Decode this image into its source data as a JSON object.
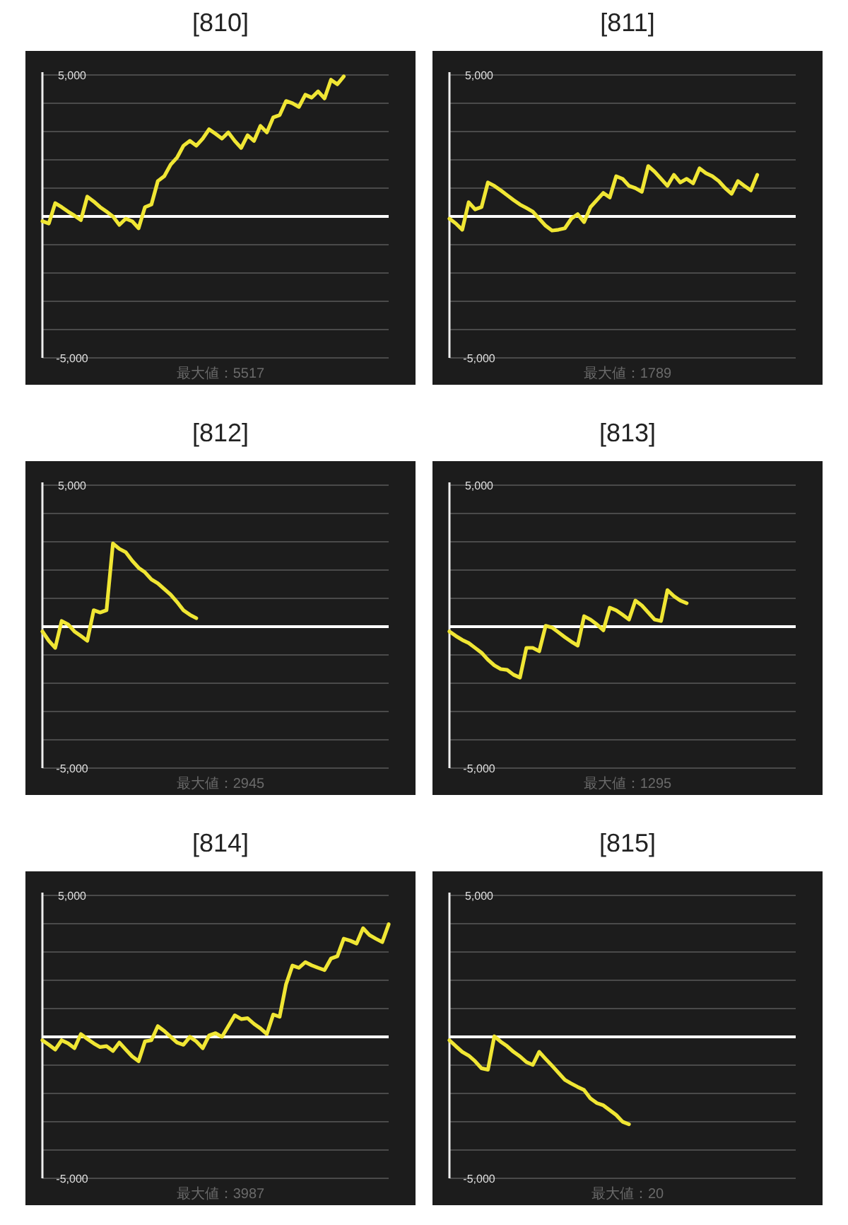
{
  "chart_data": [
    {
      "type": "line",
      "title": "[810]",
      "categories": [
        null,
        null,
        null,
        null,
        null,
        null,
        null,
        null,
        null,
        null,
        null,
        null,
        null,
        null,
        null,
        null,
        null,
        null,
        null,
        null,
        null,
        null,
        null,
        null,
        null,
        null,
        null,
        null,
        null,
        null,
        null,
        null,
        null,
        null,
        null,
        null,
        null,
        null,
        null,
        null,
        null,
        null,
        null,
        null,
        null,
        null,
        null,
        null,
        null,
        null,
        null,
        null,
        null,
        null,
        null
      ],
      "series": [
        {
          "color": "#f0e634",
          "values": [
            -170,
            -250,
            470,
            330,
            170,
            30,
            -130,
            700,
            530,
            330,
            170,
            0,
            -300,
            -80,
            -170,
            -420,
            330,
            420,
            1250,
            1420,
            1830,
            2080,
            2500,
            2670,
            2500,
            2750,
            3080,
            2920,
            2750,
            2970,
            2670,
            2420,
            2870,
            2670,
            3200,
            2970,
            3500,
            3580,
            4080,
            4000,
            3870,
            4300,
            4200,
            4420,
            4170,
            4830,
            4670,
            4950,
            null,
            null,
            null,
            null,
            null,
            null,
            null
          ]
        }
      ],
      "ylim": [
        -5000,
        5000
      ],
      "yticks": [
        {
          "value": -5000,
          "label": "-5,000"
        },
        {
          "value": -4000,
          "label": null
        },
        {
          "value": -3000,
          "label": null
        },
        {
          "value": -2000,
          "label": null
        },
        {
          "value": -1000,
          "label": null
        },
        {
          "value": 0,
          "label": null
        },
        {
          "value": 1000,
          "label": null
        },
        {
          "value": 2000,
          "label": null
        },
        {
          "value": 3000,
          "label": null
        },
        {
          "value": 4000,
          "label": null
        },
        {
          "value": 5000,
          "label": "5,000"
        }
      ],
      "grid": "y",
      "tick_labels": "y",
      "ref_lines": [
        {
          "axis": "y",
          "value": 0,
          "color": "#ffffff"
        }
      ],
      "annotations": [
        "最大値：5517"
      ]
    },
    {
      "type": "line",
      "title": "[811]",
      "categories": [
        null,
        null,
        null,
        null,
        null,
        null,
        null,
        null,
        null,
        null,
        null,
        null,
        null,
        null,
        null,
        null,
        null,
        null,
        null,
        null,
        null,
        null,
        null,
        null,
        null,
        null,
        null,
        null,
        null,
        null,
        null,
        null,
        null,
        null,
        null,
        null,
        null,
        null,
        null,
        null,
        null,
        null,
        null,
        null,
        null,
        null,
        null,
        null,
        null,
        null,
        null,
        null,
        null,
        null,
        null
      ],
      "series": [
        {
          "color": "#f0e634",
          "values": [
            -80,
            -250,
            -470,
            500,
            250,
            330,
            1200,
            1080,
            920,
            750,
            580,
            420,
            300,
            170,
            -80,
            -330,
            -500,
            -470,
            -420,
            -80,
            80,
            -200,
            330,
            580,
            830,
            670,
            1420,
            1330,
            1080,
            1000,
            870,
            1780,
            1580,
            1330,
            1080,
            1470,
            1200,
            1330,
            1170,
            1700,
            1530,
            1420,
            1250,
            1000,
            800,
            1250,
            1080,
            920,
            1470,
            null,
            null,
            null,
            null,
            null,
            null
          ]
        }
      ],
      "ylim": [
        -5000,
        5000
      ],
      "yticks": [
        {
          "value": -5000,
          "label": "-5,000"
        },
        {
          "value": -4000,
          "label": null
        },
        {
          "value": -3000,
          "label": null
        },
        {
          "value": -2000,
          "label": null
        },
        {
          "value": -1000,
          "label": null
        },
        {
          "value": 0,
          "label": null
        },
        {
          "value": 1000,
          "label": null
        },
        {
          "value": 2000,
          "label": null
        },
        {
          "value": 3000,
          "label": null
        },
        {
          "value": 4000,
          "label": null
        },
        {
          "value": 5000,
          "label": "5,000"
        }
      ],
      "grid": "y",
      "tick_labels": "y",
      "ref_lines": [
        {
          "axis": "y",
          "value": 0,
          "color": "#ffffff"
        }
      ],
      "annotations": [
        "最大値：1789"
      ]
    },
    {
      "type": "line",
      "title": "[812]",
      "categories": [
        null,
        null,
        null,
        null,
        null,
        null,
        null,
        null,
        null,
        null,
        null,
        null,
        null,
        null,
        null,
        null,
        null,
        null,
        null,
        null,
        null,
        null,
        null,
        null,
        null,
        null,
        null,
        null,
        null,
        null,
        null,
        null,
        null,
        null,
        null,
        null,
        null,
        null,
        null,
        null,
        null,
        null,
        null,
        null,
        null,
        null,
        null,
        null,
        null,
        null,
        null,
        null,
        null,
        null,
        null
      ],
      "series": [
        {
          "color": "#f0e634",
          "values": [
            -170,
            -500,
            -750,
            200,
            80,
            -170,
            -330,
            -500,
            580,
            500,
            580,
            2940,
            2750,
            2630,
            2330,
            2080,
            1920,
            1670,
            1530,
            1330,
            1130,
            870,
            580,
            420,
            300,
            null,
            null,
            null,
            null,
            null,
            null,
            null,
            null,
            null,
            null,
            null,
            null,
            null,
            null,
            null,
            null,
            null,
            null,
            null,
            null,
            null,
            null,
            null,
            null,
            null,
            null,
            null,
            null,
            null,
            null
          ]
        }
      ],
      "ylim": [
        -5000,
        5000
      ],
      "yticks": [
        {
          "value": -5000,
          "label": "-5,000"
        },
        {
          "value": -4000,
          "label": null
        },
        {
          "value": -3000,
          "label": null
        },
        {
          "value": -2000,
          "label": null
        },
        {
          "value": -1000,
          "label": null
        },
        {
          "value": 0,
          "label": null
        },
        {
          "value": 1000,
          "label": null
        },
        {
          "value": 2000,
          "label": null
        },
        {
          "value": 3000,
          "label": null
        },
        {
          "value": 4000,
          "label": null
        },
        {
          "value": 5000,
          "label": "5,000"
        }
      ],
      "grid": "y",
      "tick_labels": "y",
      "ref_lines": [
        {
          "axis": "y",
          "value": 0,
          "color": "#ffffff"
        }
      ],
      "annotations": [
        "最大値：2945"
      ]
    },
    {
      "type": "line",
      "title": "[813]",
      "categories": [
        null,
        null,
        null,
        null,
        null,
        null,
        null,
        null,
        null,
        null,
        null,
        null,
        null,
        null,
        null,
        null,
        null,
        null,
        null,
        null,
        null,
        null,
        null,
        null,
        null,
        null,
        null,
        null,
        null,
        null,
        null,
        null,
        null,
        null,
        null,
        null,
        null,
        null,
        null,
        null,
        null,
        null,
        null,
        null,
        null,
        null,
        null,
        null,
        null,
        null,
        null,
        null,
        null,
        null,
        null
      ],
      "series": [
        {
          "color": "#f0e634",
          "values": [
            -170,
            -330,
            -470,
            -580,
            -750,
            -920,
            -1170,
            -1370,
            -1500,
            -1530,
            -1700,
            -1800,
            -750,
            -750,
            -870,
            30,
            -30,
            -200,
            -370,
            -530,
            -670,
            370,
            250,
            80,
            -130,
            670,
            580,
            420,
            250,
            920,
            750,
            500,
            250,
            200,
            1290,
            1080,
            920,
            830,
            null,
            null,
            null,
            null,
            null,
            null,
            null,
            null,
            null,
            null,
            null,
            null,
            null,
            null,
            null,
            null,
            null
          ]
        }
      ],
      "ylim": [
        -5000,
        5000
      ],
      "yticks": [
        {
          "value": -5000,
          "label": "-5,000"
        },
        {
          "value": -4000,
          "label": null
        },
        {
          "value": -3000,
          "label": null
        },
        {
          "value": -2000,
          "label": null
        },
        {
          "value": -1000,
          "label": null
        },
        {
          "value": 0,
          "label": null
        },
        {
          "value": 1000,
          "label": null
        },
        {
          "value": 2000,
          "label": null
        },
        {
          "value": 3000,
          "label": null
        },
        {
          "value": 4000,
          "label": null
        },
        {
          "value": 5000,
          "label": "5,000"
        }
      ],
      "grid": "y",
      "tick_labels": "y",
      "ref_lines": [
        {
          "axis": "y",
          "value": 0,
          "color": "#ffffff"
        }
      ],
      "annotations": [
        "最大値：1295"
      ]
    },
    {
      "type": "line",
      "title": "[814]",
      "categories": [
        null,
        null,
        null,
        null,
        null,
        null,
        null,
        null,
        null,
        null,
        null,
        null,
        null,
        null,
        null,
        null,
        null,
        null,
        null,
        null,
        null,
        null,
        null,
        null,
        null,
        null,
        null,
        null,
        null,
        null,
        null,
        null,
        null,
        null,
        null,
        null,
        null,
        null,
        null,
        null,
        null,
        null,
        null,
        null,
        null,
        null,
        null,
        null,
        null,
        null,
        null,
        null,
        null,
        null,
        null
      ],
      "series": [
        {
          "color": "#f0e634",
          "values": [
            -120,
            -280,
            -450,
            -120,
            -230,
            -400,
            100,
            -70,
            -230,
            -360,
            -330,
            -500,
            -200,
            -450,
            -690,
            -860,
            -160,
            -120,
            380,
            210,
            0,
            -200,
            -280,
            0,
            -160,
            -400,
            50,
            130,
            0,
            380,
            760,
            630,
            660,
            460,
            300,
            100,
            790,
            710,
            1860,
            2520,
            2440,
            2640,
            2530,
            2440,
            2360,
            2770,
            2850,
            3470,
            3400,
            3300,
            3840,
            3600,
            3470,
            3350,
            3980
          ]
        }
      ],
      "ylim": [
        -5000,
        5000
      ],
      "yticks": [
        {
          "value": -5000,
          "label": "-5,000"
        },
        {
          "value": -4000,
          "label": null
        },
        {
          "value": -3000,
          "label": null
        },
        {
          "value": -2000,
          "label": null
        },
        {
          "value": -1000,
          "label": null
        },
        {
          "value": 0,
          "label": null
        },
        {
          "value": 1000,
          "label": null
        },
        {
          "value": 2000,
          "label": null
        },
        {
          "value": 3000,
          "label": null
        },
        {
          "value": 4000,
          "label": null
        },
        {
          "value": 5000,
          "label": "5,000"
        }
      ],
      "grid": "y",
      "tick_labels": "y",
      "ref_lines": [
        {
          "axis": "y",
          "value": 0,
          "color": "#ffffff"
        }
      ],
      "annotations": [
        "最大値：3987"
      ]
    },
    {
      "type": "line",
      "title": "[815]",
      "categories": [
        null,
        null,
        null,
        null,
        null,
        null,
        null,
        null,
        null,
        null,
        null,
        null,
        null,
        null,
        null,
        null,
        null,
        null,
        null,
        null,
        null,
        null,
        null,
        null,
        null,
        null,
        null,
        null,
        null,
        null,
        null,
        null,
        null,
        null,
        null,
        null,
        null,
        null,
        null,
        null,
        null,
        null,
        null,
        null,
        null,
        null,
        null,
        null,
        null,
        null,
        null,
        null,
        null,
        null,
        null
      ],
      "series": [
        {
          "color": "#f0e634",
          "values": [
            -120,
            -330,
            -530,
            -660,
            -860,
            -1110,
            -1160,
            20,
            -170,
            -330,
            -530,
            -690,
            -890,
            -990,
            -530,
            -780,
            -1020,
            -1270,
            -1520,
            -1650,
            -1770,
            -1880,
            -2180,
            -2340,
            -2420,
            -2590,
            -2760,
            -3000,
            -3090,
            null,
            null,
            null,
            null,
            null,
            null,
            null,
            null,
            null,
            null,
            null,
            null,
            null,
            null,
            null,
            null,
            null,
            null,
            null,
            null,
            null,
            null,
            null,
            null,
            null,
            null
          ]
        }
      ],
      "ylim": [
        -5000,
        5000
      ],
      "yticks": [
        {
          "value": -5000,
          "label": "-5,000"
        },
        {
          "value": -4000,
          "label": null
        },
        {
          "value": -3000,
          "label": null
        },
        {
          "value": -2000,
          "label": null
        },
        {
          "value": -1000,
          "label": null
        },
        {
          "value": 0,
          "label": null
        },
        {
          "value": 1000,
          "label": null
        },
        {
          "value": 2000,
          "label": null
        },
        {
          "value": 3000,
          "label": null
        },
        {
          "value": 4000,
          "label": null
        },
        {
          "value": 5000,
          "label": "5,000"
        }
      ],
      "grid": "y",
      "tick_labels": "y",
      "ref_lines": [
        {
          "axis": "y",
          "value": 0,
          "color": "#ffffff"
        }
      ],
      "annotations": [
        "最大値：20"
      ]
    }
  ]
}
